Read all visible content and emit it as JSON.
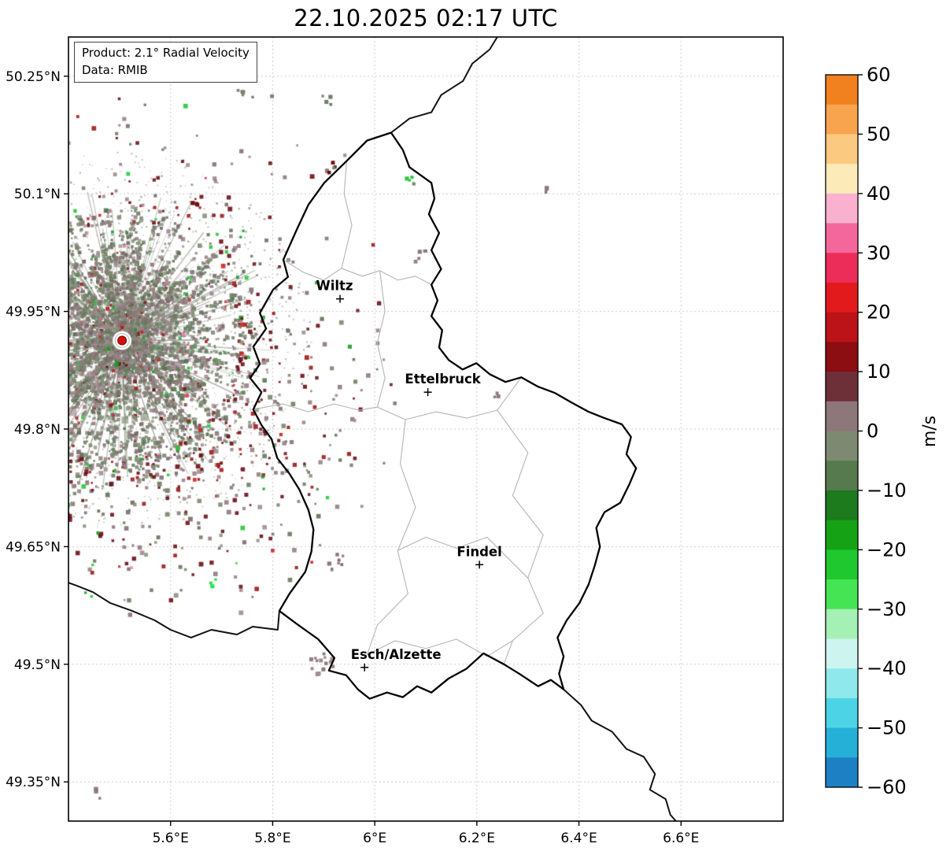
{
  "info_box": {
    "line1": "Product: 2.1° Radial Velocity",
    "line2": "Data: RMIB"
  },
  "chart_data": {
    "type": "radar-velocity-map",
    "title": "22.10.2025 02:17 UTC",
    "product": "2.1° Radial Velocity",
    "source": "RMIB",
    "unit": "m/s",
    "lon_range": [
      5.4,
      6.8
    ],
    "lat_range": [
      49.3,
      50.3
    ],
    "lon_ticks": [
      {
        "label": "5.6°E",
        "lon": 5.6
      },
      {
        "label": "5.8°E",
        "lon": 5.8
      },
      {
        "label": "6°E",
        "lon": 6.0
      },
      {
        "label": "6.2°E",
        "lon": 6.2
      },
      {
        "label": "6.4°E",
        "lon": 6.4
      },
      {
        "label": "6.6°E",
        "lon": 6.6
      }
    ],
    "lat_ticks": [
      {
        "label": "50.25°N",
        "lat": 50.25
      },
      {
        "label": "50.1°N",
        "lat": 50.1
      },
      {
        "label": "49.95°N",
        "lat": 49.95
      },
      {
        "label": "49.8°N",
        "lat": 49.8
      },
      {
        "label": "49.65°N",
        "lat": 49.65
      },
      {
        "label": "49.5°N",
        "lat": 49.5
      },
      {
        "label": "49.35°N",
        "lat": 49.35
      }
    ],
    "colorbar": {
      "label": "m/s",
      "range": [
        -60,
        60
      ],
      "ticks": [
        {
          "label": "60",
          "value": 60
        },
        {
          "label": "50",
          "value": 50
        },
        {
          "label": "40",
          "value": 40
        },
        {
          "label": "30",
          "value": 30
        },
        {
          "label": "20",
          "value": 20
        },
        {
          "label": "10",
          "value": 10
        },
        {
          "label": "0",
          "value": 0
        },
        {
          "label": "−10",
          "value": -10
        },
        {
          "label": "−20",
          "value": -20
        },
        {
          "label": "−30",
          "value": -30
        },
        {
          "label": "−40",
          "value": -40
        },
        {
          "label": "−50",
          "value": -50
        },
        {
          "label": "−60",
          "value": -60
        }
      ],
      "bands": [
        [
          60,
          55,
          "#f1801f"
        ],
        [
          55,
          50,
          "#f8a44f"
        ],
        [
          50,
          45,
          "#fbc97f"
        ],
        [
          45,
          40,
          "#fdeab9"
        ],
        [
          40,
          35,
          "#f9b1cf"
        ],
        [
          35,
          30,
          "#f4679c"
        ],
        [
          30,
          25,
          "#ec2d59"
        ],
        [
          25,
          20,
          "#e31a1c"
        ],
        [
          20,
          15,
          "#bb1318"
        ],
        [
          15,
          10,
          "#8c0d12"
        ],
        [
          10,
          5,
          "#6d3038"
        ],
        [
          5,
          0,
          "#8d777b"
        ],
        [
          0,
          -5,
          "#7e8971"
        ],
        [
          -5,
          -10,
          "#567a4e"
        ],
        [
          -10,
          -15,
          "#1d7a1d"
        ],
        [
          -15,
          -20,
          "#15a315"
        ],
        [
          -20,
          -25,
          "#1ec82e"
        ],
        [
          -25,
          -30,
          "#45e455"
        ],
        [
          -30,
          -35,
          "#a5f0b5"
        ],
        [
          -35,
          -40,
          "#cdf4ee"
        ],
        [
          -40,
          -45,
          "#8fe8ec"
        ],
        [
          -45,
          -50,
          "#4cd4e6"
        ],
        [
          -50,
          -55,
          "#25b0d8"
        ],
        [
          -55,
          -60,
          "#1d80c4"
        ]
      ]
    },
    "cities": [
      {
        "name": "Wiltz",
        "lon": 5.932,
        "lat": 49.966,
        "label_dx": -7
      },
      {
        "name": "Ettelbruck",
        "lon": 6.104,
        "lat": 49.847,
        "label_dx": 19
      },
      {
        "name": "Findel",
        "lon": 6.205,
        "lat": 49.627,
        "label_dx": 0
      },
      {
        "name": "Esch/Alzette",
        "lon": 5.98,
        "lat": 49.496,
        "label_dx": 40
      }
    ],
    "radar_site": {
      "lon": 5.505,
      "lat": 49.913
    },
    "radar_field": {
      "seed": 20251022,
      "center": {
        "lon": 5.505,
        "lat": 49.913
      },
      "core_radius_px": 148,
      "core_points": 9000,
      "hair_lines": 180,
      "scatter_points": 2600,
      "palette": {
        "green": [
          "#6d7f66",
          "#75836c",
          "#7d8a72",
          "#687a60",
          "#5d7355",
          "#8a9480"
        ],
        "mauve": [
          "#8d797d",
          "#957f82",
          "#857075",
          "#9b8588",
          "#7d696d",
          "#a18d90"
        ],
        "accent": [
          [
            "#6b1016",
            3
          ],
          [
            "#a01818",
            2
          ],
          [
            "#d02020",
            1.2
          ],
          [
            "#28c838",
            1.5
          ],
          [
            "#169c26",
            1
          ],
          [
            "#ef7fb0",
            0.4
          ]
        ]
      },
      "outliers": [
        {
          "lon": 5.735,
          "lat": 50.227,
          "count": 4,
          "spread": 7,
          "colors": [
            "#75836c",
            "#8d797d"
          ]
        },
        {
          "lon": 5.906,
          "lat": 50.219,
          "count": 4,
          "spread": 6,
          "colors": [
            "#6d7f66",
            "#8d797d"
          ]
        },
        {
          "lon": 5.913,
          "lat": 50.136,
          "count": 6,
          "spread": 9,
          "colors": [
            "#6b1016",
            "#75836c",
            "#8d797d"
          ]
        },
        {
          "lon": 5.651,
          "lat": 50.091,
          "count": 3,
          "spread": 5,
          "colors": [
            "#a01818",
            "#6b1016"
          ]
        },
        {
          "lon": 6.068,
          "lat": 50.118,
          "count": 4,
          "spread": 6,
          "colors": [
            "#28c838",
            "#75836c"
          ]
        },
        {
          "lon": 6.09,
          "lat": 50.02,
          "count": 5,
          "spread": 8,
          "colors": [
            "#8d797d",
            "#957f82"
          ]
        },
        {
          "lon": 6.335,
          "lat": 50.105,
          "count": 3,
          "spread": 6,
          "colors": [
            "#8d797d"
          ]
        },
        {
          "lon": 6.235,
          "lat": 49.845,
          "count": 3,
          "spread": 5,
          "colors": [
            "#8d797d"
          ]
        },
        {
          "lon": 5.925,
          "lat": 49.63,
          "count": 8,
          "spread": 10,
          "colors": [
            "#8d797d",
            "#957f82",
            "#7d696d"
          ]
        },
        {
          "lon": 5.682,
          "lat": 49.604,
          "count": 3,
          "spread": 5,
          "colors": [
            "#2ee24e"
          ]
        },
        {
          "lon": 5.9,
          "lat": 49.5,
          "count": 14,
          "spread": 16,
          "colors": [
            "#8d797d",
            "#957f82",
            "#a18d90"
          ]
        },
        {
          "lon": 5.455,
          "lat": 49.335,
          "count": 3,
          "spread": 6,
          "colors": [
            "#8d797d"
          ]
        }
      ]
    }
  },
  "geometry": {
    "luxembourg": [
      [
        6.032,
        50.178
      ],
      [
        5.985,
        50.168
      ],
      [
        5.945,
        50.142
      ],
      [
        5.901,
        50.114
      ],
      [
        5.87,
        50.086
      ],
      [
        5.847,
        50.054
      ],
      [
        5.821,
        50.016
      ],
      [
        5.83,
        49.994
      ],
      [
        5.801,
        49.978
      ],
      [
        5.775,
        49.948
      ],
      [
        5.787,
        49.928
      ],
      [
        5.762,
        49.905
      ],
      [
        5.775,
        49.883
      ],
      [
        5.756,
        49.865
      ],
      [
        5.778,
        49.847
      ],
      [
        5.762,
        49.825
      ],
      [
        5.778,
        49.805
      ],
      [
        5.798,
        49.787
      ],
      [
        5.809,
        49.763
      ],
      [
        5.833,
        49.743
      ],
      [
        5.852,
        49.723
      ],
      [
        5.87,
        49.697
      ],
      [
        5.88,
        49.672
      ],
      [
        5.876,
        49.644
      ],
      [
        5.864,
        49.618
      ],
      [
        5.833,
        49.59
      ],
      [
        5.813,
        49.568
      ],
      [
        5.846,
        49.552
      ],
      [
        5.889,
        49.532
      ],
      [
        5.921,
        49.508
      ],
      [
        5.91,
        49.492
      ],
      [
        5.944,
        49.486
      ],
      [
        5.967,
        49.468
      ],
      [
        5.99,
        49.456
      ],
      [
        6.024,
        49.464
      ],
      [
        6.055,
        49.458
      ],
      [
        6.083,
        49.472
      ],
      [
        6.111,
        49.464
      ],
      [
        6.145,
        49.482
      ],
      [
        6.179,
        49.494
      ],
      [
        6.213,
        49.514
      ],
      [
        6.253,
        49.5
      ],
      [
        6.283,
        49.488
      ],
      [
        6.32,
        49.472
      ],
      [
        6.345,
        49.48
      ],
      [
        6.37,
        49.468
      ],
      [
        6.361,
        49.488
      ],
      [
        6.37,
        49.51
      ],
      [
        6.358,
        49.534
      ],
      [
        6.376,
        49.556
      ],
      [
        6.401,
        49.578
      ],
      [
        6.419,
        49.602
      ],
      [
        6.431,
        49.626
      ],
      [
        6.441,
        49.65
      ],
      [
        6.434,
        49.674
      ],
      [
        6.45,
        49.694
      ],
      [
        6.481,
        49.706
      ],
      [
        6.499,
        49.73
      ],
      [
        6.512,
        49.75
      ],
      [
        6.493,
        49.768
      ],
      [
        6.502,
        49.79
      ],
      [
        6.484,
        49.806
      ],
      [
        6.45,
        49.814
      ],
      [
        6.419,
        49.822
      ],
      [
        6.385,
        49.834
      ],
      [
        6.353,
        49.846
      ],
      [
        6.32,
        49.854
      ],
      [
        6.287,
        49.866
      ],
      [
        6.256,
        49.86
      ],
      [
        6.225,
        49.87
      ],
      [
        6.199,
        49.884
      ],
      [
        6.172,
        49.876
      ],
      [
        6.145,
        49.888
      ],
      [
        6.126,
        49.904
      ],
      [
        6.132,
        49.926
      ],
      [
        6.111,
        49.944
      ],
      [
        6.123,
        49.964
      ],
      [
        6.111,
        49.984
      ],
      [
        6.13,
        50.004
      ],
      [
        6.111,
        50.028
      ],
      [
        6.126,
        50.05
      ],
      [
        6.106,
        50.074
      ],
      [
        6.117,
        50.094
      ],
      [
        6.111,
        50.114
      ],
      [
        6.068,
        50.134
      ],
      [
        6.055,
        50.156
      ],
      [
        6.032,
        50.178
      ]
    ],
    "country_borders": [
      [
        [
          6.24,
          50.3
        ],
        [
          6.225,
          50.284
        ],
        [
          6.191,
          50.266
        ],
        [
          6.173,
          50.244
        ],
        [
          6.13,
          50.226
        ],
        [
          6.111,
          50.204
        ],
        [
          6.068,
          50.196
        ],
        [
          6.032,
          50.178
        ]
      ],
      [
        [
          6.37,
          49.468
        ],
        [
          6.404,
          49.448
        ],
        [
          6.425,
          49.428
        ],
        [
          6.465,
          49.414
        ],
        [
          6.493,
          49.392
        ],
        [
          6.527,
          49.382
        ],
        [
          6.549,
          49.36
        ],
        [
          6.539,
          49.34
        ],
        [
          6.57,
          49.328
        ],
        [
          6.579,
          49.308
        ],
        [
          6.59,
          49.3
        ]
      ],
      [
        [
          5.4,
          49.604
        ],
        [
          5.417,
          49.6
        ],
        [
          5.448,
          49.592
        ],
        [
          5.482,
          49.578
        ],
        [
          5.525,
          49.568
        ],
        [
          5.569,
          49.556
        ],
        [
          5.6,
          49.544
        ],
        [
          5.64,
          49.534
        ],
        [
          5.68,
          49.544
        ],
        [
          5.73,
          49.538
        ],
        [
          5.761,
          49.548
        ],
        [
          5.81,
          49.544
        ],
        [
          5.813,
          49.568
        ]
      ]
    ],
    "district_borders": [
      [
        [
          5.821,
          50.016
        ],
        [
          5.86,
          50.0
        ],
        [
          5.9,
          49.99
        ],
        [
          5.935,
          50.005
        ],
        [
          5.975,
          49.995
        ],
        [
          6.01,
          50.002
        ],
        [
          6.045,
          49.99
        ],
        [
          6.08,
          49.995
        ],
        [
          6.111,
          49.984
        ]
      ],
      [
        [
          6.01,
          50.002
        ],
        [
          6.02,
          49.95
        ],
        [
          6.005,
          49.91
        ],
        [
          6.02,
          49.865
        ],
        [
          6.005,
          49.828
        ]
      ],
      [
        [
          5.762,
          49.825
        ],
        [
          5.82,
          49.832
        ],
        [
          5.87,
          49.822
        ],
        [
          5.92,
          49.832
        ],
        [
          5.97,
          49.824
        ],
        [
          6.005,
          49.828
        ],
        [
          6.06,
          49.812
        ],
        [
          6.12,
          49.822
        ],
        [
          6.18,
          49.814
        ],
        [
          6.24,
          49.824
        ],
        [
          6.287,
          49.866
        ]
      ],
      [
        [
          6.06,
          49.812
        ],
        [
          6.05,
          49.755
        ],
        [
          6.08,
          49.7
        ],
        [
          6.045,
          49.645
        ],
        [
          6.065,
          49.59
        ],
        [
          6.005,
          49.55
        ],
        [
          5.985,
          49.512
        ]
      ],
      [
        [
          6.24,
          49.824
        ],
        [
          6.3,
          49.77
        ],
        [
          6.27,
          49.715
        ],
        [
          6.33,
          49.665
        ],
        [
          6.3,
          49.61
        ],
        [
          6.33,
          49.565
        ],
        [
          6.27,
          49.53
        ],
        [
          6.253,
          49.5
        ]
      ],
      [
        [
          6.045,
          49.645
        ],
        [
          6.1,
          49.662
        ],
        [
          6.16,
          49.648
        ],
        [
          6.22,
          49.662
        ],
        [
          6.3,
          49.61
        ]
      ],
      [
        [
          5.985,
          49.512
        ],
        [
          6.04,
          49.53
        ],
        [
          6.1,
          49.52
        ],
        [
          6.16,
          49.532
        ],
        [
          6.22,
          49.51
        ],
        [
          6.27,
          49.53
        ]
      ],
      [
        [
          5.935,
          50.005
        ],
        [
          5.955,
          50.06
        ],
        [
          5.94,
          50.1
        ],
        [
          5.945,
          50.142
        ]
      ]
    ]
  }
}
